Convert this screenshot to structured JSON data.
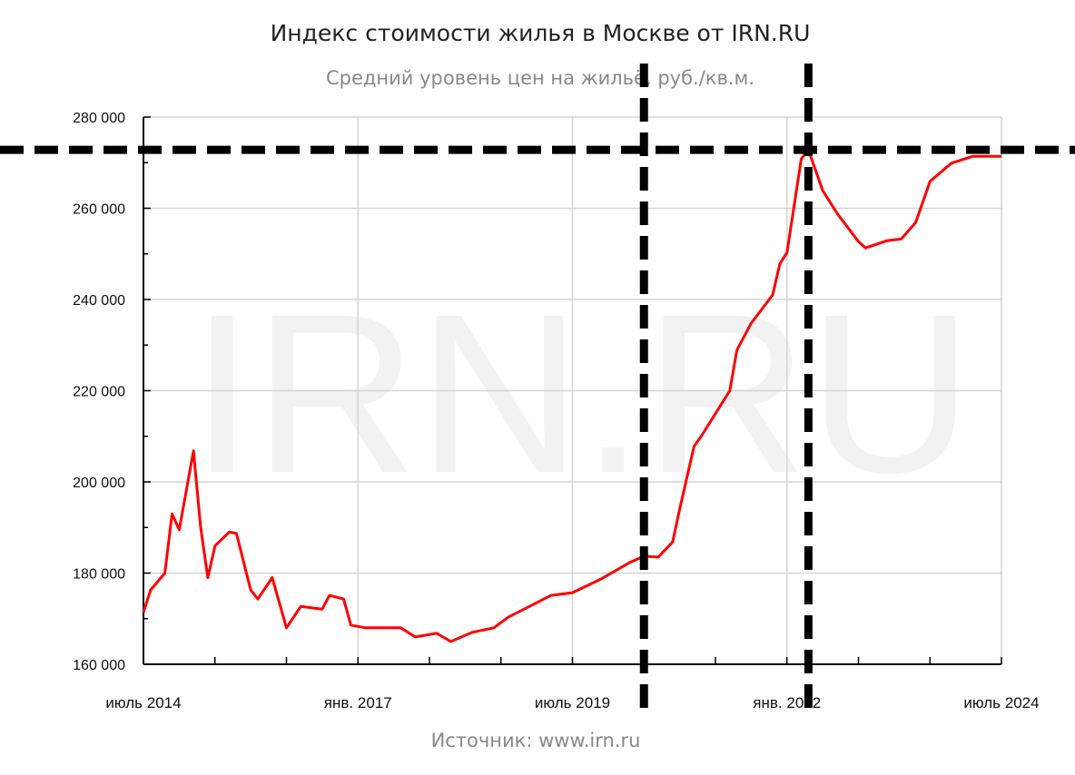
{
  "chart_data": {
    "type": "line",
    "title": "Индекс стоимости жилья в Москве от IRN.RU",
    "subtitle": "Средний уровень цен на жильё, руб./кв.м.",
    "source": "Источник: www.irn.ru",
    "watermark": "IRN.RU",
    "xlim": [
      "2014-07",
      "2024-07"
    ],
    "ylim": [
      160000,
      280000
    ],
    "grid": true,
    "line_color": "#ff0000",
    "y_ticks": [
      {
        "value": 160000,
        "label": "160 000"
      },
      {
        "value": 180000,
        "label": "180 000"
      },
      {
        "value": 200000,
        "label": "200 000"
      },
      {
        "value": 220000,
        "label": "220 000"
      },
      {
        "value": 240000,
        "label": "240 000"
      },
      {
        "value": 260000,
        "label": "260 000"
      },
      {
        "value": 280000,
        "label": "280 000"
      }
    ],
    "x_ticks": [
      {
        "value": "2014-07",
        "label": "июль 2014"
      },
      {
        "value": "2017-01",
        "label": "янв. 2017"
      },
      {
        "value": "2019-07",
        "label": "июль 2019"
      },
      {
        "value": "2022-01",
        "label": "янв. 2022"
      },
      {
        "value": "2024-07",
        "label": "июль 2024"
      }
    ],
    "series": [
      {
        "points": [
          [
            "2014-07",
            171400
          ],
          [
            "2014-08",
            176300
          ],
          [
            "2014-10",
            180000
          ],
          [
            "2014-11",
            193000
          ],
          [
            "2014-12",
            189500
          ],
          [
            "2015-02",
            206800
          ],
          [
            "2015-03",
            190000
          ],
          [
            "2015-04",
            179000
          ],
          [
            "2015-05",
            186000
          ],
          [
            "2015-07",
            189000
          ],
          [
            "2015-08",
            188700
          ],
          [
            "2015-10",
            176300
          ],
          [
            "2015-11",
            174300
          ],
          [
            "2016-01",
            179000
          ],
          [
            "2016-03",
            168000
          ],
          [
            "2016-05",
            172700
          ],
          [
            "2016-08",
            172100
          ],
          [
            "2016-09",
            175100
          ],
          [
            "2016-11",
            174300
          ],
          [
            "2016-12",
            168600
          ],
          [
            "2017-02",
            168000
          ],
          [
            "2017-07",
            168000
          ],
          [
            "2017-09",
            166000
          ],
          [
            "2017-12",
            166800
          ],
          [
            "2018-02",
            165000
          ],
          [
            "2018-05",
            167000
          ],
          [
            "2018-08",
            168000
          ],
          [
            "2018-10",
            170300
          ],
          [
            "2019-01",
            172700
          ],
          [
            "2019-04",
            175100
          ],
          [
            "2019-07",
            175700
          ],
          [
            "2019-11",
            178700
          ],
          [
            "2020-03",
            182300
          ],
          [
            "2020-05",
            183700
          ],
          [
            "2020-07",
            183500
          ],
          [
            "2020-09",
            186800
          ],
          [
            "2020-10",
            194000
          ],
          [
            "2020-12",
            207800
          ],
          [
            "2021-01",
            210000
          ],
          [
            "2021-05",
            220000
          ],
          [
            "2021-06",
            228900
          ],
          [
            "2021-08",
            234800
          ],
          [
            "2021-11",
            241000
          ],
          [
            "2021-12",
            247800
          ],
          [
            "2022-01",
            250300
          ],
          [
            "2022-03",
            270800
          ],
          [
            "2022-04",
            272800
          ],
          [
            "2022-06",
            263900
          ],
          [
            "2022-08",
            258900
          ],
          [
            "2022-11",
            252700
          ],
          [
            "2022-12",
            251300
          ],
          [
            "2023-03",
            252900
          ],
          [
            "2023-05",
            253300
          ],
          [
            "2023-07",
            256900
          ],
          [
            "2023-09",
            265900
          ],
          [
            "2023-12",
            269900
          ],
          [
            "2024-03",
            271400
          ],
          [
            "2024-07",
            271400
          ]
        ]
      }
    ],
    "annotations": {
      "color": "#000000",
      "style": "dashed",
      "vertical_lines": [
        "2020-05",
        "2022-04"
      ],
      "horizontal_lines": [
        272800
      ]
    }
  }
}
